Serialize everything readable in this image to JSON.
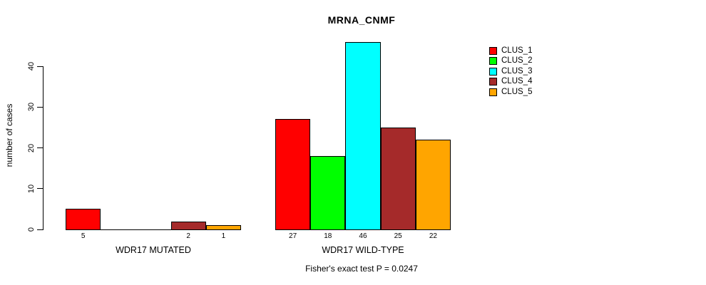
{
  "chart_data": {
    "type": "bar",
    "title": "MRNA_CNMF",
    "ylabel": "number of cases",
    "subtitle": "Fisher's exact test P = 0.0247",
    "categories": [
      "WDR17 MUTATED",
      "WDR17 WILD-TYPE"
    ],
    "series": [
      {
        "name": "CLUS_1",
        "color": "#ff0000",
        "values": [
          5,
          27
        ]
      },
      {
        "name": "CLUS_2",
        "color": "#00ff00",
        "values": [
          0,
          18
        ]
      },
      {
        "name": "CLUS_3",
        "color": "#00ffff",
        "values": [
          0,
          46
        ]
      },
      {
        "name": "CLUS_4",
        "color": "#a52a2a",
        "values": [
          2,
          25
        ]
      },
      {
        "name": "CLUS_5",
        "color": "#ffa500",
        "values": [
          1,
          22
        ]
      }
    ],
    "groups": [
      {
        "label": "WDR17 MUTATED",
        "values": [
          5,
          0,
          0,
          2,
          1
        ]
      },
      {
        "label": "WDR17 WILD-TYPE",
        "values": [
          27,
          18,
          46,
          25,
          22
        ]
      }
    ],
    "yticks": [
      0,
      10,
      20,
      30,
      40
    ],
    "ylim": [
      0,
      46
    ],
    "axis_range": [
      0,
      40
    ],
    "grid": false,
    "legend_position": "right",
    "bar_labels_shown_only_if_nonzero": true
  }
}
